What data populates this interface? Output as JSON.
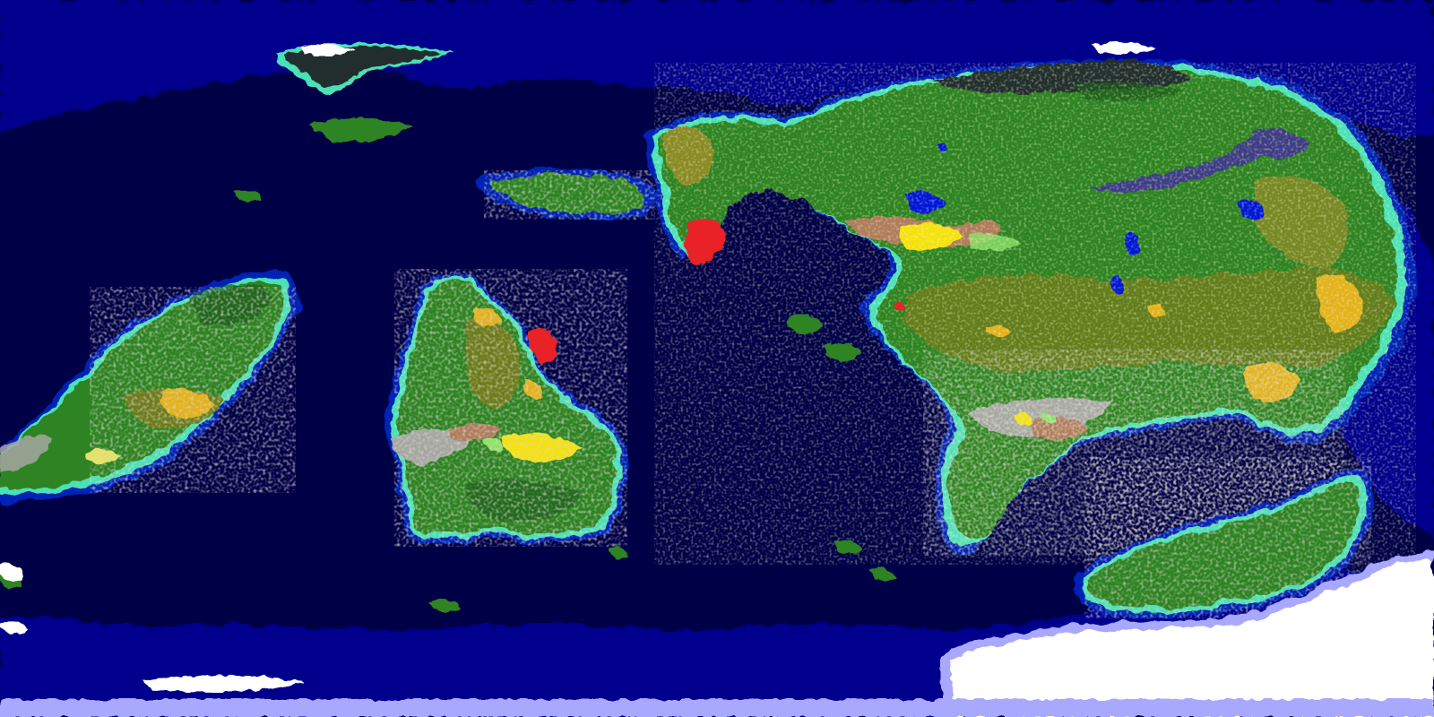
{
  "map": {
    "projection": "equirectangular",
    "biome_colors": {
      "deep_ocean": "#000047",
      "ocean": "#00058c",
      "shelf_water": "#0022b5",
      "coast_shallows": "#4ce1b7",
      "beach_sand": "#e5e35f",
      "grassland": "#2e8320",
      "forest": "#238326",
      "steppe_olive": "#6d7b1e",
      "olive_dry": "#8a8a28",
      "savanna_gold": "#e3b21b",
      "desert_yellow": "#f5e20f",
      "brown_highland": "#b07c5c",
      "mountain_gray": "#a6a7a3",
      "light_green": "#8ee36a",
      "dark_forest": "#1d5a1a",
      "tundra_dark": "#242e2e",
      "lake_blue": "#0019d6",
      "marsh_purple": "#3c3d86",
      "volcanic_red": "#e82028",
      "ice_white": "#ffffff",
      "ice_blue": "#a8a8ff"
    },
    "features": [
      "north-polar-island",
      "west-continent",
      "central-continent",
      "eastern-supercontinent",
      "southeast-peninsula",
      "south-polar-icecap",
      "volcanic-zones",
      "inland-lakes"
    ]
  }
}
